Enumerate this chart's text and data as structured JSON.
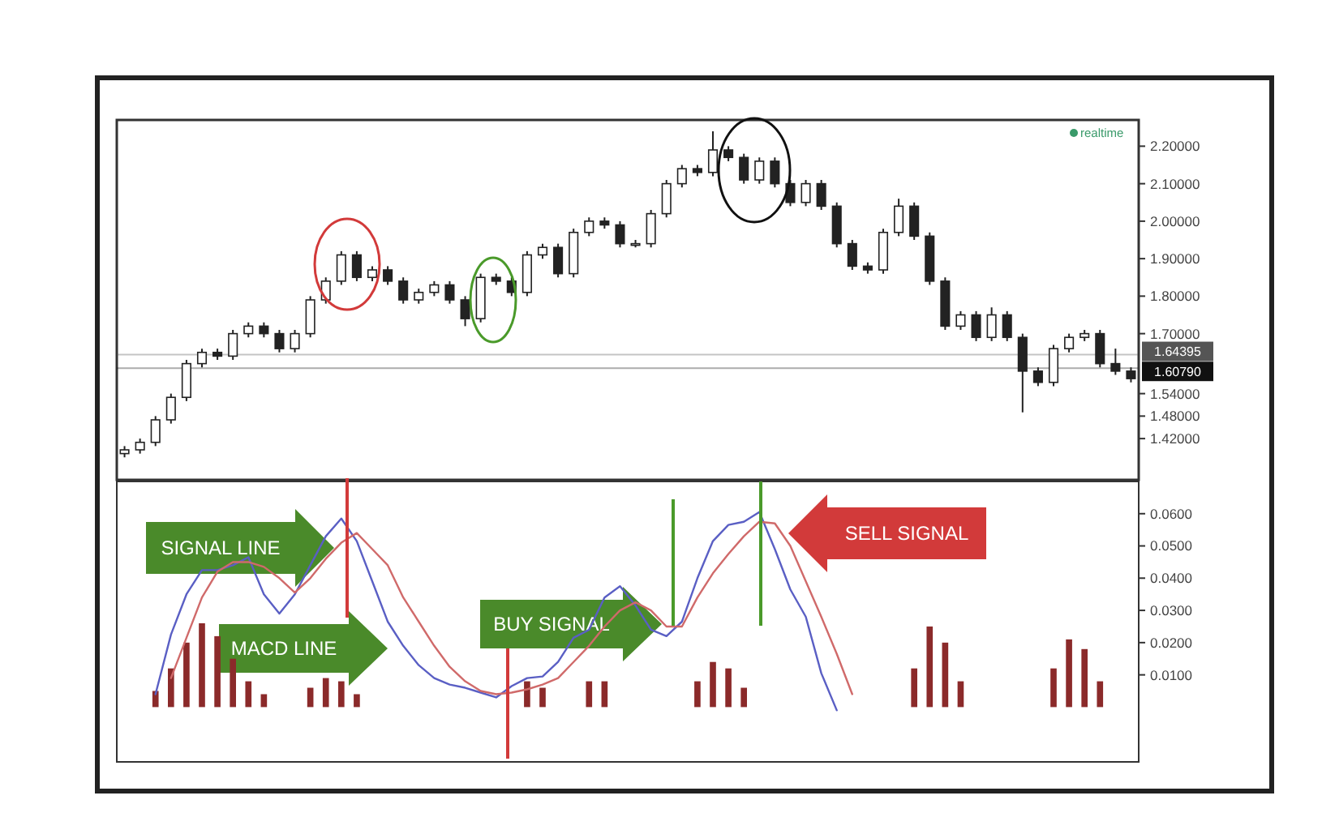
{
  "chart_data": [
    {
      "type": "candlestick",
      "categories": [
        null,
        null,
        null,
        null,
        null,
        null,
        null,
        null,
        null,
        null,
        null,
        null,
        null,
        null,
        null,
        null,
        null,
        null,
        null,
        null,
        null,
        null,
        null,
        null,
        null,
        null,
        null,
        null,
        null,
        null,
        null,
        null,
        null,
        null,
        null,
        null,
        null,
        null,
        null,
        null,
        null,
        null,
        null,
        null,
        null,
        null,
        null,
        null,
        null,
        null,
        null,
        null,
        null,
        null,
        null,
        null,
        null,
        null,
        null,
        null,
        null,
        null,
        null,
        null,
        null,
        null
      ],
      "ohlc": [
        [
          1.38,
          1.4,
          1.37,
          1.39
        ],
        [
          1.39,
          1.42,
          1.38,
          1.41
        ],
        [
          1.41,
          1.48,
          1.4,
          1.47
        ],
        [
          1.47,
          1.54,
          1.46,
          1.53
        ],
        [
          1.53,
          1.63,
          1.52,
          1.62
        ],
        [
          1.62,
          1.66,
          1.61,
          1.65
        ],
        [
          1.65,
          1.66,
          1.63,
          1.64
        ],
        [
          1.64,
          1.71,
          1.63,
          1.7
        ],
        [
          1.7,
          1.73,
          1.69,
          1.72
        ],
        [
          1.72,
          1.73,
          1.69,
          1.7
        ],
        [
          1.7,
          1.71,
          1.65,
          1.66
        ],
        [
          1.66,
          1.71,
          1.65,
          1.7
        ],
        [
          1.7,
          1.8,
          1.69,
          1.79
        ],
        [
          1.79,
          1.85,
          1.78,
          1.84
        ],
        [
          1.84,
          1.92,
          1.83,
          1.91
        ],
        [
          1.91,
          1.92,
          1.84,
          1.85
        ],
        [
          1.85,
          1.88,
          1.84,
          1.87
        ],
        [
          1.87,
          1.88,
          1.83,
          1.84
        ],
        [
          1.84,
          1.85,
          1.78,
          1.79
        ],
        [
          1.79,
          1.82,
          1.78,
          1.81
        ],
        [
          1.81,
          1.84,
          1.8,
          1.83
        ],
        [
          1.83,
          1.84,
          1.78,
          1.79
        ],
        [
          1.79,
          1.8,
          1.72,
          1.74
        ],
        [
          1.74,
          1.86,
          1.73,
          1.85
        ],
        [
          1.85,
          1.86,
          1.83,
          1.84
        ],
        [
          1.84,
          1.85,
          1.8,
          1.81
        ],
        [
          1.81,
          1.92,
          1.8,
          1.91
        ],
        [
          1.91,
          1.94,
          1.9,
          1.93
        ],
        [
          1.93,
          1.94,
          1.85,
          1.86
        ],
        [
          1.86,
          1.98,
          1.85,
          1.97
        ],
        [
          1.97,
          2.01,
          1.96,
          2.0
        ],
        [
          2.0,
          2.01,
          1.98,
          1.99
        ],
        [
          1.99,
          2.0,
          1.93,
          1.94
        ],
        [
          1.94,
          1.95,
          1.93,
          1.94
        ],
        [
          1.94,
          2.03,
          1.93,
          2.02
        ],
        [
          2.02,
          2.11,
          2.01,
          2.1
        ],
        [
          2.1,
          2.15,
          2.09,
          2.14
        ],
        [
          2.14,
          2.15,
          2.12,
          2.13
        ],
        [
          2.13,
          2.24,
          2.12,
          2.19
        ],
        [
          2.19,
          2.2,
          2.16,
          2.17
        ],
        [
          2.17,
          2.18,
          2.1,
          2.11
        ],
        [
          2.11,
          2.17,
          2.1,
          2.16
        ],
        [
          2.16,
          2.17,
          2.09,
          2.1
        ],
        [
          2.1,
          2.11,
          2.04,
          2.05
        ],
        [
          2.05,
          2.11,
          2.04,
          2.1
        ],
        [
          2.1,
          2.11,
          2.03,
          2.04
        ],
        [
          2.04,
          2.05,
          1.93,
          1.94
        ],
        [
          1.94,
          1.95,
          1.87,
          1.88
        ],
        [
          1.88,
          1.89,
          1.86,
          1.87
        ],
        [
          1.87,
          1.98,
          1.86,
          1.97
        ],
        [
          1.97,
          2.06,
          1.96,
          2.04
        ],
        [
          2.04,
          2.05,
          1.95,
          1.96
        ],
        [
          1.96,
          1.97,
          1.83,
          1.84
        ],
        [
          1.84,
          1.85,
          1.71,
          1.72
        ],
        [
          1.72,
          1.76,
          1.71,
          1.75
        ],
        [
          1.75,
          1.76,
          1.68,
          1.69
        ],
        [
          1.69,
          1.77,
          1.68,
          1.75
        ],
        [
          1.75,
          1.76,
          1.68,
          1.69
        ],
        [
          1.69,
          1.7,
          1.49,
          1.6
        ],
        [
          1.6,
          1.61,
          1.56,
          1.57
        ],
        [
          1.57,
          1.67,
          1.56,
          1.66
        ],
        [
          1.66,
          1.7,
          1.65,
          1.69
        ],
        [
          1.69,
          1.71,
          1.68,
          1.7
        ],
        [
          1.7,
          1.71,
          1.61,
          1.62
        ],
        [
          1.62,
          1.66,
          1.59,
          1.6
        ],
        [
          1.6,
          1.61,
          1.57,
          1.58
        ]
      ],
      "color": "#222222",
      "ylim": [
        1.31,
        2.27
      ],
      "yticks": [
        {
          "value": 2.2,
          "label": "2.20000"
        },
        {
          "value": 2.1,
          "label": "2.10000"
        },
        {
          "value": 2.0,
          "label": "2.00000"
        },
        {
          "value": 1.9,
          "label": "1.90000"
        },
        {
          "value": 1.8,
          "label": "1.80000"
        },
        {
          "value": 1.7,
          "label": "1.70000"
        },
        {
          "value": 1.54,
          "label": "1.54000"
        },
        {
          "value": 1.48,
          "label": "1.48000"
        },
        {
          "value": 1.42,
          "label": "1.42000"
        }
      ],
      "ref_lines": [
        {
          "axis": "y",
          "value": 1.64395,
          "label": "1.64395",
          "color": "#555555"
        },
        {
          "axis": "y",
          "value": 1.6079,
          "label": "1.60790",
          "color": "#111111"
        }
      ],
      "annotations": [
        "realtime"
      ],
      "tick_labels": "y"
    },
    {
      "type": "line",
      "categories": [
        null,
        null,
        null,
        null,
        null,
        null,
        null,
        null,
        null,
        null,
        null,
        null,
        null,
        null,
        null,
        null,
        null,
        null,
        null,
        null,
        null,
        null,
        null,
        null,
        null,
        null,
        null,
        null,
        null,
        null,
        null,
        null,
        null,
        null,
        null,
        null,
        null,
        null,
        null,
        null,
        null,
        null,
        null,
        null,
        null,
        null,
        null,
        null,
        null,
        null,
        null,
        null,
        null,
        null,
        null,
        null,
        null,
        null,
        null,
        null,
        null,
        null,
        null,
        null,
        null,
        null
      ],
      "series": [
        {
          "type": "bar",
          "color": "#8b2a2a",
          "values": [
            null,
            null,
            0.005,
            0.012,
            0.02,
            0.026,
            0.022,
            0.015,
            0.008,
            0.004,
            null,
            null,
            0.006,
            0.009,
            0.008,
            0.004,
            null,
            null,
            null,
            null,
            null,
            null,
            null,
            null,
            null,
            null,
            0.008,
            0.006,
            null,
            null,
            0.008,
            0.008,
            null,
            null,
            null,
            null,
            null,
            0.008,
            0.014,
            0.012,
            0.006,
            null,
            null,
            null,
            null,
            null,
            null,
            null,
            null,
            null,
            null,
            0.012,
            0.025,
            0.02,
            0.008,
            null,
            null,
            null,
            null,
            null,
            0.012,
            0.021,
            0.018,
            0.008,
            null,
            null
          ]
        },
        {
          "color": "#5a5fc4",
          "values": [
            null,
            null,
            0.004,
            0.0225,
            0.035,
            0.0425,
            0.0425,
            0.044,
            0.0465,
            0.035,
            0.029,
            0.035,
            0.044,
            0.053,
            0.0585,
            0.0515,
            0.039,
            0.0265,
            0.019,
            0.013,
            0.009,
            0.007,
            0.006,
            0.0045,
            0.003,
            0.0065,
            0.009,
            0.0095,
            0.014,
            0.0215,
            0.024,
            0.034,
            0.0375,
            0.0315,
            0.024,
            0.022,
            0.0265,
            0.04,
            0.0515,
            0.0565,
            0.0575,
            0.0605,
            0.049,
            0.0365,
            0.028,
            0.0105,
            -0.001,
            null,
            null,
            null,
            null,
            null,
            null,
            null,
            null,
            null,
            null,
            null,
            null,
            null,
            null,
            null,
            null,
            null,
            null,
            null
          ]
        },
        {
          "color": "#d06a6a",
          "values": [
            null,
            null,
            null,
            0.009,
            0.0215,
            0.034,
            0.042,
            0.045,
            0.045,
            0.0435,
            0.04,
            0.0355,
            0.04,
            0.046,
            0.051,
            0.054,
            0.049,
            0.044,
            0.034,
            0.0265,
            0.019,
            0.0125,
            0.008,
            0.005,
            0.004,
            0.0045,
            0.0055,
            0.007,
            0.009,
            0.014,
            0.019,
            0.025,
            0.03,
            0.0325,
            0.03,
            0.025,
            0.025,
            0.034,
            0.0415,
            0.0475,
            0.053,
            0.0575,
            0.057,
            0.05,
            0.039,
            0.028,
            0.0165,
            0.004,
            null,
            null,
            null,
            null,
            null,
            null,
            null,
            null,
            null,
            null,
            null,
            null,
            null,
            null,
            null,
            null,
            null,
            null
          ]
        }
      ],
      "ylim": [
        -0.017,
        0.07
      ],
      "yticks": [
        {
          "value": 0.06,
          "label": "0.0600"
        },
        {
          "value": 0.05,
          "label": "0.0500"
        },
        {
          "value": 0.04,
          "label": "0.0400"
        },
        {
          "value": 0.03,
          "label": "0.0300"
        },
        {
          "value": 0.02,
          "label": "0.0200"
        },
        {
          "value": 0.01,
          "label": "0.0100"
        }
      ],
      "annotations": [
        "SIGNAL LINE",
        "MACD LINE",
        "BUY SIGNAL",
        "SELL SIGNAL"
      ],
      "tick_labels": "y"
    }
  ]
}
